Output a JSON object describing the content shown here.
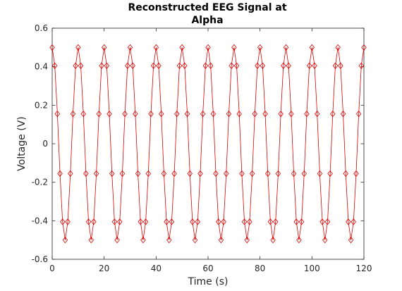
{
  "chart_data": {
    "type": "line",
    "title": [
      "Reconstructed EEG Signal at",
      "Alpha"
    ],
    "xlabel": "Time (s)",
    "ylabel": "Voltage (V)",
    "xlim": [
      0,
      120
    ],
    "ylim": [
      -0.6,
      0.6
    ],
    "xticks": [
      0,
      20,
      40,
      60,
      80,
      100,
      120
    ],
    "yticks": [
      -0.6,
      -0.4,
      -0.2,
      0,
      0.2,
      0.4,
      0.6
    ],
    "xtick_labels": [
      "0",
      "20",
      "40",
      "60",
      "80",
      "100",
      "120"
    ],
    "ytick_labels": [
      "-0.6",
      "-0.4",
      "-0.2",
      "0",
      "0.2",
      "0.4",
      "0.6"
    ],
    "grid": false,
    "series": [
      {
        "marker": "diamond",
        "color": "#e00000",
        "x": [
          0,
          1,
          2,
          3,
          4,
          5,
          6,
          7,
          8,
          9,
          10,
          11,
          12,
          13,
          14,
          15,
          16,
          17,
          18,
          19,
          20,
          21,
          22,
          23,
          24,
          25,
          26,
          27,
          28,
          29,
          30,
          31,
          32,
          33,
          34,
          35,
          36,
          37,
          38,
          39,
          40,
          41,
          42,
          43,
          44,
          45,
          46,
          47,
          48,
          49,
          50,
          51,
          52,
          53,
          54,
          55,
          56,
          57,
          58,
          59,
          60,
          61,
          62,
          63,
          64,
          65,
          66,
          67,
          68,
          69,
          70,
          71,
          72,
          73,
          74,
          75,
          76,
          77,
          78,
          79,
          80,
          81,
          82,
          83,
          84,
          85,
          86,
          87,
          88,
          89,
          90,
          91,
          92,
          93,
          94,
          95,
          96,
          97,
          98,
          99,
          100,
          101,
          102,
          103,
          104,
          105,
          106,
          107,
          108,
          109,
          110,
          111,
          112,
          113,
          114,
          115,
          116,
          117,
          118,
          119,
          120
        ],
        "y": [
          0.5,
          0.405,
          0.155,
          -0.155,
          -0.405,
          -0.5,
          -0.405,
          -0.155,
          0.155,
          0.405,
          0.5,
          0.405,
          0.155,
          -0.155,
          -0.405,
          -0.5,
          -0.405,
          -0.155,
          0.155,
          0.405,
          0.5,
          0.405,
          0.155,
          -0.155,
          -0.405,
          -0.5,
          -0.405,
          -0.155,
          0.155,
          0.405,
          0.5,
          0.405,
          0.155,
          -0.155,
          -0.405,
          -0.5,
          -0.405,
          -0.155,
          0.155,
          0.405,
          0.5,
          0.405,
          0.155,
          -0.155,
          -0.405,
          -0.5,
          -0.405,
          -0.155,
          0.155,
          0.405,
          0.5,
          0.405,
          0.155,
          -0.155,
          -0.405,
          -0.5,
          -0.405,
          -0.155,
          0.155,
          0.405,
          0.5,
          0.405,
          0.155,
          -0.155,
          -0.405,
          -0.5,
          -0.405,
          -0.155,
          0.155,
          0.405,
          0.5,
          0.405,
          0.155,
          -0.155,
          -0.405,
          -0.5,
          -0.405,
          -0.155,
          0.155,
          0.405,
          0.5,
          0.405,
          0.155,
          -0.155,
          -0.405,
          -0.5,
          -0.405,
          -0.155,
          0.155,
          0.405,
          0.5,
          0.405,
          0.155,
          -0.155,
          -0.405,
          -0.5,
          -0.405,
          -0.155,
          0.155,
          0.405,
          0.5,
          0.405,
          0.155,
          -0.155,
          -0.405,
          -0.5,
          -0.405,
          -0.155,
          0.155,
          0.405,
          0.5,
          0.405,
          0.155,
          -0.155,
          -0.405,
          -0.5,
          -0.405,
          -0.155,
          0.155,
          0.405,
          0.5
        ]
      }
    ]
  }
}
